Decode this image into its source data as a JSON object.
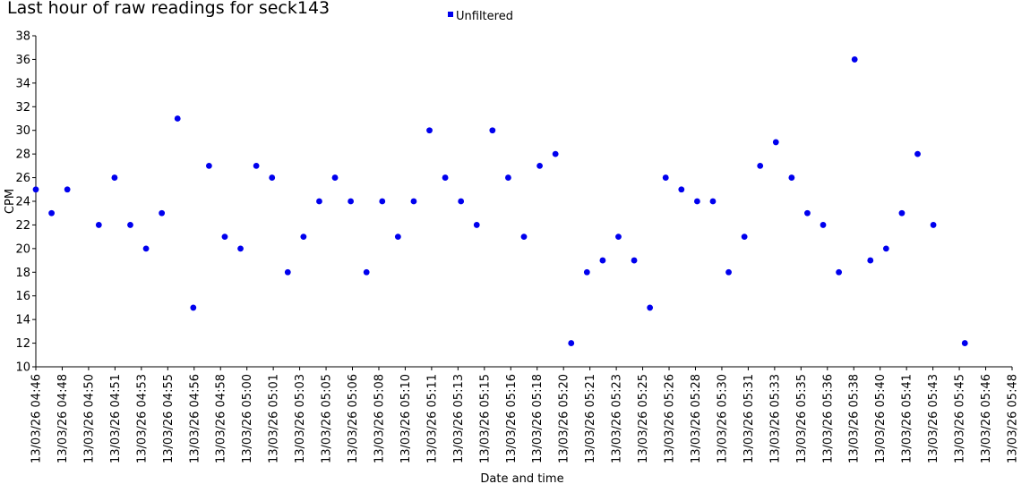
{
  "chart_data": {
    "type": "scatter",
    "title": "Last hour of raw readings for seck143",
    "xlabel": "Date and time",
    "ylabel": "CPM",
    "ylim": [
      10,
      38
    ],
    "yticks": [
      10,
      12,
      14,
      16,
      18,
      20,
      22,
      24,
      26,
      28,
      30,
      32,
      34,
      36,
      38
    ],
    "xlim": [
      "13/03/26 04:46",
      "13/03/26 05:48"
    ],
    "xticks": [
      "13/03/26 04:46",
      "13/03/26 04:48",
      "13/03/26 04:50",
      "13/03/26 04:51",
      "13/03/26 04:53",
      "13/03/26 04:55",
      "13/03/26 04:56",
      "13/03/26 04:58",
      "13/03/26 05:00",
      "13/03/26 05:01",
      "13/03/26 05:03",
      "13/03/26 05:05",
      "13/03/26 05:06",
      "13/03/26 05:08",
      "13/03/26 05:10",
      "13/03/26 05:11",
      "13/03/26 05:13",
      "13/03/26 05:15",
      "13/03/26 05:16",
      "13/03/26 05:18",
      "13/03/26 05:20",
      "13/03/26 05:21",
      "13/03/26 05:23",
      "13/03/26 05:25",
      "13/03/26 05:26",
      "13/03/26 05:28",
      "13/03/26 05:30",
      "13/03/26 05:31",
      "13/03/26 05:33",
      "13/03/26 05:35",
      "13/03/26 05:36",
      "13/03/26 05:38",
      "13/03/26 05:40",
      "13/03/26 05:41",
      "13/03/26 05:43",
      "13/03/26 05:45",
      "13/03/26 05:46",
      "13/03/26 05:48"
    ],
    "legend_position": "top-center",
    "grid": false,
    "series": [
      {
        "name": "Unfiltered",
        "color": "#0000ee",
        "points": [
          {
            "x": "13/03/26 04:46",
            "y": 25
          },
          {
            "x": "13/03/26 04:47",
            "y": 23
          },
          {
            "x": "13/03/26 04:48",
            "y": 25
          },
          {
            "x": "13/03/26 04:50",
            "y": 22
          },
          {
            "x": "13/03/26 04:51",
            "y": 26
          },
          {
            "x": "13/03/26 04:52",
            "y": 22
          },
          {
            "x": "13/03/26 04:53",
            "y": 20
          },
          {
            "x": "13/03/26 04:54",
            "y": 23
          },
          {
            "x": "13/03/26 04:55",
            "y": 31
          },
          {
            "x": "13/03/26 04:56",
            "y": 15
          },
          {
            "x": "13/03/26 04:57",
            "y": 27
          },
          {
            "x": "13/03/26 04:58",
            "y": 21
          },
          {
            "x": "13/03/26 04:59",
            "y": 20
          },
          {
            "x": "13/03/26 05:00",
            "y": 27
          },
          {
            "x": "13/03/26 05:01",
            "y": 26
          },
          {
            "x": "13/03/26 05:02",
            "y": 18
          },
          {
            "x": "13/03/26 05:03",
            "y": 21
          },
          {
            "x": "13/03/26 05:04",
            "y": 24
          },
          {
            "x": "13/03/26 05:05",
            "y": 26
          },
          {
            "x": "13/03/26 05:06",
            "y": 24
          },
          {
            "x": "13/03/26 05:07",
            "y": 18
          },
          {
            "x": "13/03/26 05:08",
            "y": 24
          },
          {
            "x": "13/03/26 05:09",
            "y": 21
          },
          {
            "x": "13/03/26 05:10",
            "y": 24
          },
          {
            "x": "13/03/26 05:11",
            "y": 30
          },
          {
            "x": "13/03/26 05:12",
            "y": 26
          },
          {
            "x": "13/03/26 05:13",
            "y": 24
          },
          {
            "x": "13/03/26 05:14",
            "y": 22
          },
          {
            "x": "13/03/26 05:15",
            "y": 30
          },
          {
            "x": "13/03/26 05:16",
            "y": 26
          },
          {
            "x": "13/03/26 05:17",
            "y": 21
          },
          {
            "x": "13/03/26 05:18",
            "y": 27
          },
          {
            "x": "13/03/26 05:19",
            "y": 28
          },
          {
            "x": "13/03/26 05:20",
            "y": 12
          },
          {
            "x": "13/03/26 05:21",
            "y": 18
          },
          {
            "x": "13/03/26 05:22",
            "y": 19
          },
          {
            "x": "13/03/26 05:23",
            "y": 21
          },
          {
            "x": "13/03/26 05:24",
            "y": 19
          },
          {
            "x": "13/03/26 05:25",
            "y": 15
          },
          {
            "x": "13/03/26 05:26",
            "y": 26
          },
          {
            "x": "13/03/26 05:27",
            "y": 25
          },
          {
            "x": "13/03/26 05:28",
            "y": 24
          },
          {
            "x": "13/03/26 05:29",
            "y": 24
          },
          {
            "x": "13/03/26 05:30",
            "y": 18
          },
          {
            "x": "13/03/26 05:31",
            "y": 21
          },
          {
            "x": "13/03/26 05:32",
            "y": 27
          },
          {
            "x": "13/03/26 05:33",
            "y": 29
          },
          {
            "x": "13/03/26 05:34",
            "y": 26
          },
          {
            "x": "13/03/26 05:35",
            "y": 23
          },
          {
            "x": "13/03/26 05:36",
            "y": 22
          },
          {
            "x": "13/03/26 05:37",
            "y": 18
          },
          {
            "x": "13/03/26 05:38",
            "y": 36
          },
          {
            "x": "13/03/26 05:39",
            "y": 19
          },
          {
            "x": "13/03/26 05:40",
            "y": 20
          },
          {
            "x": "13/03/26 05:41",
            "y": 23
          },
          {
            "x": "13/03/26 05:42",
            "y": 28
          },
          {
            "x": "13/03/26 05:43",
            "y": 22
          },
          {
            "x": "13/03/26 05:45",
            "y": 12
          }
        ]
      }
    ]
  }
}
